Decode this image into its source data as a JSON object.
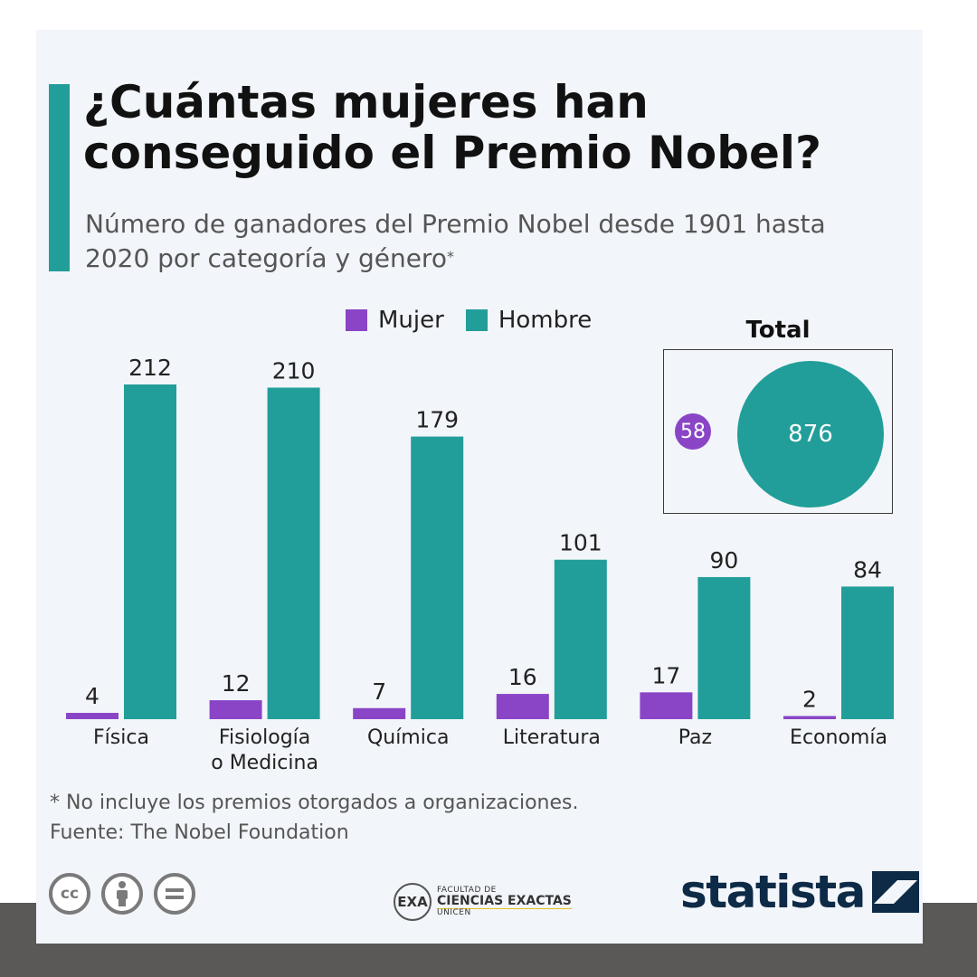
{
  "title": "¿Cuántas mujeres han conseguido el Premio Nobel?",
  "subtitle": "Número de ganadores del Premio Nobel desde 1901 hasta 2020 por categoría y género",
  "subtitle_mark": "*",
  "colors": {
    "accent": "#229e9a",
    "women": "#8a45c7",
    "men": "#229e9a",
    "brand": "#0d2a47"
  },
  "chart_data": {
    "type": "bar",
    "categories": [
      "Física",
      "Fisiología o Medicina",
      "Química",
      "Literatura",
      "Paz",
      "Economía"
    ],
    "category_lines": [
      [
        "Física"
      ],
      [
        "Fisiología",
        "o Medicina"
      ],
      [
        "Química"
      ],
      [
        "Literatura"
      ],
      [
        "Paz"
      ],
      [
        "Economía"
      ]
    ],
    "series": [
      {
        "name": "Mujer",
        "color": "#8a45c7",
        "values": [
          4,
          12,
          7,
          16,
          17,
          2
        ]
      },
      {
        "name": "Hombre",
        "color": "#229e9a",
        "values": [
          212,
          210,
          179,
          101,
          90,
          84
        ]
      }
    ],
    "ylim": [
      0,
      212
    ],
    "grid": false,
    "legend_position": "top-center",
    "data_labels": true
  },
  "total": {
    "title": "Total",
    "women": "58",
    "men": "876"
  },
  "footnote": "* No incluye los premios otorgados a organizaciones.",
  "source": "Fuente: The Nobel Foundation",
  "license_icons": [
    "cc-icon",
    "attribution-icon",
    "no-derivatives-icon"
  ],
  "partner_logo": {
    "mark": "EXA",
    "line1": "FACULTAD DE",
    "line2": "CIENCIAS EXACTAS",
    "line3": "UNICEN"
  },
  "brand": "statista"
}
